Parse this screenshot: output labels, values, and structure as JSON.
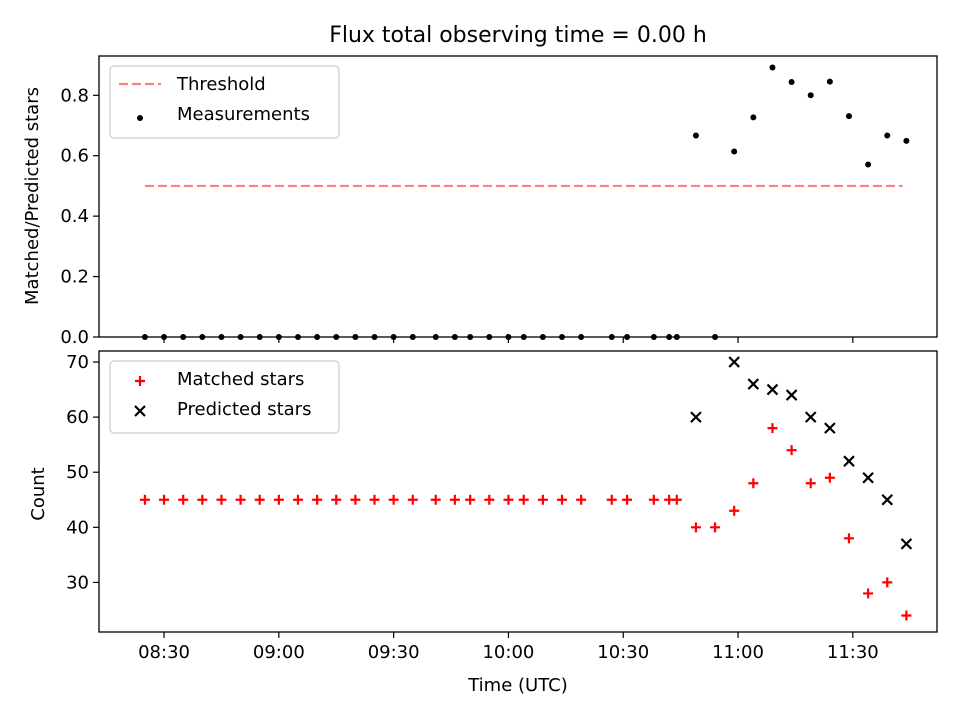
{
  "title": "Flux total observing time = 0.00 h",
  "xlabel": "Time (UTC)",
  "x_ticks": [
    "08:30",
    "09:00",
    "09:30",
    "10:00",
    "10:30",
    "11:00",
    "11:30"
  ],
  "colors": {
    "threshold": "#ff7f7f",
    "measurements": "#000000",
    "matched": "#ff0000",
    "predicted": "#000000"
  },
  "chart_data": [
    {
      "type": "scatter",
      "ylabel": "Matched/Predicted stars",
      "ylim": [
        0,
        0.93
      ],
      "yticks": [
        "0.0",
        "0.2",
        "0.4",
        "0.6",
        "0.8"
      ],
      "xlim": [
        "08:13",
        "11:52"
      ],
      "legend_position": "top-left",
      "series": [
        {
          "name": "Threshold",
          "style": "dashed-line",
          "x": [
            "08:25",
            "11:43"
          ],
          "y": [
            0.5,
            0.5
          ]
        },
        {
          "name": "Measurements",
          "style": "dot",
          "x": [
            "08:25",
            "08:30",
            "08:35",
            "08:40",
            "08:45",
            "08:50",
            "08:55",
            "09:00",
            "09:05",
            "09:10",
            "09:15",
            "09:20",
            "09:25",
            "09:30",
            "09:35",
            "09:41",
            "09:46",
            "09:50",
            "09:55",
            "10:00",
            "10:04",
            "10:09",
            "10:14",
            "10:19",
            "10:27",
            "10:31",
            "10:38",
            "10:42",
            "10:44",
            "10:49",
            "10:54",
            "10:59",
            "11:04",
            "11:09",
            "11:14",
            "11:19",
            "11:24",
            "11:29",
            "11:34",
            "11:39",
            "11:44"
          ],
          "y": [
            0,
            0,
            0,
            0,
            0,
            0,
            0,
            0,
            0,
            0,
            0,
            0,
            0,
            0,
            0,
            0,
            0,
            0,
            0,
            0,
            0,
            0,
            0,
            0,
            0,
            0,
            0,
            0,
            0,
            0.667,
            0,
            0.614,
            0.727,
            0.892,
            0.844,
            0.8,
            0.845,
            0.731,
            0.571,
            0.667,
            0.649
          ]
        }
      ]
    },
    {
      "type": "scatter",
      "ylabel": "Count",
      "ylim": [
        21,
        72
      ],
      "yticks": [
        "30",
        "40",
        "50",
        "60",
        "70"
      ],
      "xlim": [
        "08:13",
        "11:52"
      ],
      "legend_position": "top-left",
      "series": [
        {
          "name": "Matched stars",
          "marker": "plus",
          "x": [
            "08:25",
            "08:30",
            "08:35",
            "08:40",
            "08:45",
            "08:50",
            "08:55",
            "09:00",
            "09:05",
            "09:10",
            "09:15",
            "09:20",
            "09:25",
            "09:30",
            "09:35",
            "09:41",
            "09:46",
            "09:50",
            "09:55",
            "10:00",
            "10:04",
            "10:09",
            "10:14",
            "10:19",
            "10:27",
            "10:31",
            "10:38",
            "10:42",
            "10:44",
            "10:49",
            "10:54",
            "10:59",
            "11:04",
            "11:09",
            "11:14",
            "11:19",
            "11:24",
            "11:29",
            "11:34",
            "11:39",
            "11:44"
          ],
          "y": [
            45,
            45,
            45,
            45,
            45,
            45,
            45,
            45,
            45,
            45,
            45,
            45,
            45,
            45,
            45,
            45,
            45,
            45,
            45,
            45,
            45,
            45,
            45,
            45,
            45,
            45,
            45,
            45,
            45,
            40,
            40,
            43,
            48,
            58,
            54,
            48,
            49,
            38,
            28,
            30,
            24
          ]
        },
        {
          "name": "Predicted stars",
          "marker": "x",
          "x": [
            "10:49",
            "10:59",
            "11:04",
            "11:09",
            "11:14",
            "11:19",
            "11:24",
            "11:29",
            "11:34",
            "11:39",
            "11:44"
          ],
          "y": [
            60,
            70,
            66,
            65,
            64,
            60,
            58,
            52,
            49,
            45,
            37
          ]
        }
      ]
    }
  ]
}
